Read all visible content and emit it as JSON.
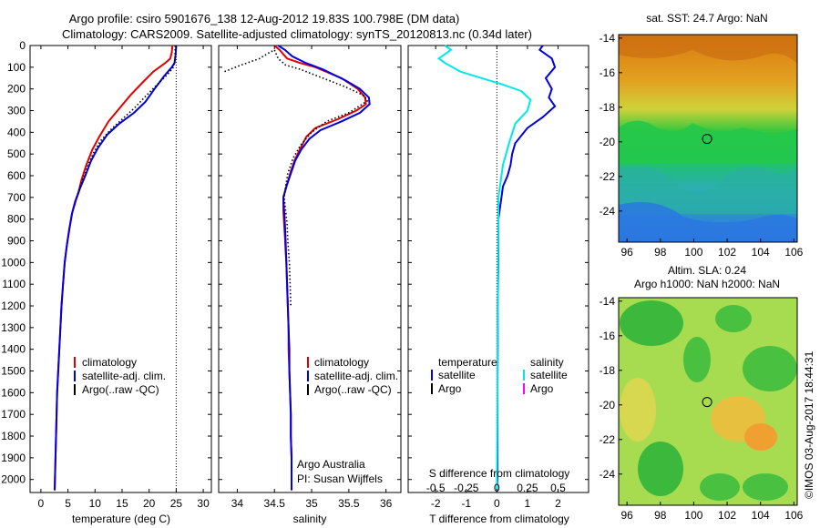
{
  "header": {
    "line1": "Argo profile: csiro 5901676_138 12-Aug-2012 19.83S 100.798E (DM data)",
    "line2": "Climatology: CARS2009. Satellite-adjusted climatology: synTS_20120813.nc (0.34d later)"
  },
  "colors": {
    "climatology": "#e00000",
    "satellite": "#0000e0",
    "argo": "#000000",
    "sal_sat": "#00e8e8",
    "sal_argo": "#ff00ff"
  },
  "chart_data": [
    {
      "type": "line",
      "id": "temperature",
      "xlabel": "temperature (deg C)",
      "x_ticks": [
        0,
        5,
        10,
        15,
        20,
        25,
        30
      ],
      "xlim": [
        -2,
        31.5
      ],
      "ylim": [
        0,
        2060
      ],
      "y_ticks": [
        0,
        100,
        200,
        300,
        400,
        500,
        600,
        700,
        800,
        900,
        1000,
        1100,
        1200,
        1300,
        1400,
        1500,
        1600,
        1700,
        1800,
        1900,
        2000
      ],
      "legend": [
        "climatology",
        "satellite-adj. clim.",
        "Argo(..raw -QC)"
      ],
      "series": [
        {
          "name": "climatology",
          "color": "#e00000",
          "style": "solid",
          "points": [
            [
              24.3,
              0
            ],
            [
              24.2,
              30
            ],
            [
              23.9,
              60
            ],
            [
              23.0,
              80
            ],
            [
              20.8,
              120
            ],
            [
              18.8,
              170
            ],
            [
              16.5,
              230
            ],
            [
              14.5,
              290
            ],
            [
              12.5,
              350
            ],
            [
              10.8,
              420
            ],
            [
              9.5,
              480
            ],
            [
              8.4,
              550
            ],
            [
              7.5,
              620
            ],
            [
              6.9,
              680
            ],
            [
              6.3,
              720
            ],
            [
              5.7,
              780
            ],
            [
              5.2,
              850
            ],
            [
              4.8,
              920
            ],
            [
              4.4,
              1000
            ],
            [
              4.1,
              1100
            ],
            [
              3.8,
              1200
            ],
            [
              3.6,
              1300
            ],
            [
              3.4,
              1400
            ],
            [
              3.2,
              1500
            ],
            [
              3.0,
              1600
            ],
            [
              2.9,
              1700
            ],
            [
              2.8,
              1800
            ],
            [
              2.7,
              1900
            ],
            [
              2.6,
              2000
            ],
            [
              2.55,
              2050
            ]
          ]
        },
        {
          "name": "satellite-adj. clim.",
          "color": "#0000e0",
          "style": "solid",
          "points": [
            [
              25.0,
              0
            ],
            [
              24.9,
              40
            ],
            [
              24.7,
              80
            ],
            [
              24.2,
              100
            ],
            [
              22.8,
              140
            ],
            [
              21.0,
              200
            ],
            [
              19.3,
              260
            ],
            [
              17.2,
              310
            ],
            [
              14.5,
              360
            ],
            [
              12.3,
              410
            ],
            [
              10.6,
              470
            ],
            [
              9.3,
              530
            ],
            [
              8.2,
              600
            ],
            [
              7.2,
              660
            ],
            [
              6.5,
              710
            ],
            [
              5.8,
              770
            ],
            [
              5.3,
              840
            ],
            [
              4.8,
              920
            ],
            [
              4.4,
              1000
            ],
            [
              4.1,
              1100
            ],
            [
              3.8,
              1200
            ],
            [
              3.6,
              1300
            ],
            [
              3.4,
              1400
            ],
            [
              3.2,
              1500
            ],
            [
              3.0,
              1600
            ],
            [
              2.9,
              1700
            ],
            [
              2.8,
              1800
            ],
            [
              2.7,
              1900
            ],
            [
              2.6,
              2000
            ],
            [
              2.55,
              2050
            ]
          ]
        },
        {
          "name": "Argo(..raw -QC)",
          "color": "#000000",
          "style": "dotted",
          "points": [
            [
              24.8,
              0
            ],
            [
              24.8,
              60
            ],
            [
              24.5,
              100
            ],
            [
              23.5,
              130
            ],
            [
              21.5,
              180
            ],
            [
              19.5,
              230
            ],
            [
              17.2,
              290
            ],
            [
              15.0,
              340
            ],
            [
              12.8,
              390
            ],
            [
              11.0,
              440
            ],
            [
              9.6,
              500
            ],
            [
              8.4,
              570
            ],
            [
              7.4,
              640
            ],
            [
              6.6,
              700
            ]
          ]
        }
      ],
      "vline": {
        "x": 25,
        "style": "dotted"
      },
      "annotation": []
    },
    {
      "type": "line",
      "id": "salinity",
      "xlabel": "salinity",
      "x_ticks": [
        34,
        34.5,
        35,
        35.5,
        36
      ],
      "xlim": [
        33.75,
        36.2
      ],
      "ylim": [
        0,
        2060
      ],
      "legend": [
        "climatology",
        "satellite-adj. clim.",
        "Argo(..raw -QC)"
      ],
      "series": [
        {
          "name": "climatology",
          "color": "#e00000",
          "style": "solid",
          "points": [
            [
              34.5,
              0
            ],
            [
              34.57,
              20
            ],
            [
              34.67,
              60
            ],
            [
              34.84,
              80
            ],
            [
              35.05,
              100
            ],
            [
              35.4,
              150
            ],
            [
              35.62,
              200
            ],
            [
              35.72,
              240
            ],
            [
              35.73,
              270
            ],
            [
              35.6,
              300
            ],
            [
              35.35,
              340
            ],
            [
              35.05,
              380
            ],
            [
              34.93,
              420
            ],
            [
              34.84,
              480
            ],
            [
              34.77,
              530
            ],
            [
              34.72,
              580
            ],
            [
              34.67,
              640
            ],
            [
              34.62,
              700
            ],
            [
              34.62,
              760
            ],
            [
              34.63,
              820
            ],
            [
              34.64,
              880
            ],
            [
              34.65,
              950
            ],
            [
              34.66,
              1000
            ],
            [
              34.67,
              1100
            ],
            [
              34.68,
              1200
            ],
            [
              34.69,
              1300
            ],
            [
              34.69,
              1400
            ],
            [
              34.7,
              1500
            ],
            [
              34.71,
              1600
            ],
            [
              34.72,
              1700
            ],
            [
              34.72,
              1800
            ],
            [
              34.73,
              1900
            ],
            [
              34.73,
              2000
            ],
            [
              34.73,
              2050
            ]
          ]
        },
        {
          "name": "satellite-adj. clim.",
          "color": "#0000e0",
          "style": "solid",
          "points": [
            [
              34.55,
              0
            ],
            [
              34.64,
              20
            ],
            [
              34.74,
              50
            ],
            [
              34.92,
              80
            ],
            [
              35.15,
              110
            ],
            [
              35.45,
              160
            ],
            [
              35.65,
              200
            ],
            [
              35.77,
              240
            ],
            [
              35.78,
              270
            ],
            [
              35.65,
              310
            ],
            [
              35.4,
              350
            ],
            [
              35.12,
              390
            ],
            [
              34.97,
              430
            ],
            [
              34.86,
              480
            ],
            [
              34.78,
              530
            ],
            [
              34.72,
              590
            ],
            [
              34.66,
              650
            ],
            [
              34.62,
              700
            ],
            [
              34.63,
              760
            ],
            [
              34.64,
              820
            ],
            [
              34.65,
              900
            ],
            [
              34.66,
              1000
            ],
            [
              34.67,
              1100
            ],
            [
              34.68,
              1200
            ],
            [
              34.69,
              1300
            ],
            [
              34.7,
              1400
            ],
            [
              34.7,
              1500
            ],
            [
              34.71,
              1600
            ],
            [
              34.72,
              1700
            ],
            [
              34.72,
              1800
            ],
            [
              34.73,
              1900
            ],
            [
              34.73,
              2000
            ],
            [
              34.73,
              2050
            ]
          ]
        },
        {
          "name": "Argo(..raw -QC)",
          "color": "#000000",
          "style": "dotted",
          "points": [
            [
              33.83,
              120
            ],
            [
              34.05,
              90
            ],
            [
              34.3,
              60
            ],
            [
              34.42,
              35
            ],
            [
              34.5,
              20
            ],
            [
              34.55,
              60
            ],
            [
              34.65,
              90
            ],
            [
              34.85,
              110
            ],
            [
              35.15,
              150
            ],
            [
              35.45,
              190
            ],
            [
              35.7,
              230
            ],
            [
              35.75,
              255
            ],
            [
              35.5,
              310
            ],
            [
              35.2,
              350
            ],
            [
              35.0,
              400
            ],
            [
              34.85,
              460
            ],
            [
              34.75,
              520
            ],
            [
              34.68,
              590
            ],
            [
              34.65,
              650
            ],
            [
              34.63,
              700
            ],
            [
              34.65,
              760
            ],
            [
              34.67,
              820
            ],
            [
              34.68,
              900
            ],
            [
              34.7,
              1000
            ],
            [
              34.71,
              1100
            ],
            [
              34.72,
              1200
            ]
          ]
        }
      ],
      "annotation": [
        "Argo Australia",
        "PI: Susan Wijffels"
      ]
    },
    {
      "type": "line",
      "id": "differences",
      "xlabel": "T difference from climatology",
      "x_ticks": [
        -2,
        -1,
        0,
        1,
        2
      ],
      "top_label": "S difference from climatology",
      "top_ticks": [
        -0.5,
        -0.25,
        0,
        0.25,
        0.5
      ],
      "xlim": [
        -2.9,
        3.0
      ],
      "ylim": [
        0,
        2060
      ],
      "legend_headers": [
        "temperature",
        "salinity"
      ],
      "legend_left": [
        "satellite",
        "Argo"
      ],
      "legend_right": [
        "satellite",
        "Argo"
      ],
      "series": [
        {
          "name": "T satellite",
          "color": "#0000e0",
          "style": "solid",
          "points": [
            [
              1.5,
              0
            ],
            [
              1.4,
              20
            ],
            [
              1.8,
              60
            ],
            [
              1.9,
              100
            ],
            [
              1.6,
              150
            ],
            [
              1.8,
              200
            ],
            [
              1.7,
              240
            ],
            [
              1.9,
              280
            ],
            [
              1.5,
              330
            ],
            [
              1.0,
              380
            ],
            [
              0.6,
              450
            ],
            [
              0.5,
              500
            ],
            [
              0.45,
              550
            ],
            [
              0.35,
              600
            ],
            [
              0.2,
              650
            ],
            [
              0.15,
              700
            ],
            [
              0.1,
              750
            ],
            [
              0.05,
              800
            ],
            [
              0.05,
              900
            ],
            [
              0.05,
              1000
            ],
            [
              0.03,
              1200
            ],
            [
              0.03,
              1400
            ],
            [
              0.02,
              1600
            ],
            [
              0.02,
              1800
            ],
            [
              0.02,
              2000
            ],
            [
              0.0,
              2050
            ]
          ]
        },
        {
          "name": "S satellite",
          "color": "#00e8e8",
          "style": "solid",
          "points": [
            [
              -1.7,
              0
            ],
            [
              -1.5,
              20
            ],
            [
              -1.9,
              60
            ],
            [
              -1.7,
              80
            ],
            [
              -1.2,
              120
            ],
            [
              -0.5,
              150
            ],
            [
              0.2,
              180
            ],
            [
              0.8,
              210
            ],
            [
              1.1,
              250
            ],
            [
              1.0,
              300
            ],
            [
              0.6,
              360
            ],
            [
              0.4,
              450
            ],
            [
              0.3,
              500
            ],
            [
              0.2,
              550
            ],
            [
              0.1,
              650
            ],
            [
              0.05,
              700
            ],
            [
              0.05,
              800
            ],
            [
              0.04,
              1000
            ],
            [
              0.03,
              1200
            ],
            [
              0.02,
              1400
            ],
            [
              0.02,
              1600
            ],
            [
              0.01,
              1800
            ],
            [
              0.0,
              2050
            ]
          ]
        }
      ],
      "vline": {
        "x": 0,
        "style": "dotted"
      },
      "annotation": []
    }
  ],
  "maps": [
    {
      "id": "sst-map",
      "title": "sat. SST: 24.7 Argo: NaN",
      "title2": "",
      "x_ticks": [
        96,
        98,
        100,
        102,
        104,
        106
      ],
      "y_ticks": [
        -14,
        -16,
        -18,
        -20,
        -22,
        -24
      ],
      "xlim": [
        95.5,
        106.2
      ],
      "ylim": [
        -25.8,
        -13.8
      ],
      "marker": {
        "lon": 100.8,
        "lat": -19.83
      }
    },
    {
      "id": "sla-map",
      "title": "Altim. SLA: 0.24",
      "title2": "Argo h1000: NaN h2000: NaN",
      "x_ticks": [
        96,
        98,
        100,
        102,
        104,
        106
      ],
      "y_ticks": [
        -14,
        -16,
        -18,
        -20,
        -22,
        -24
      ],
      "xlim": [
        95.5,
        106.2
      ],
      "ylim": [
        -25.8,
        -13.8
      ],
      "marker": {
        "lon": 100.8,
        "lat": -19.83
      }
    }
  ],
  "footer": {
    "credit": "©IMOS 03-Aug-2017 18:44:31"
  }
}
